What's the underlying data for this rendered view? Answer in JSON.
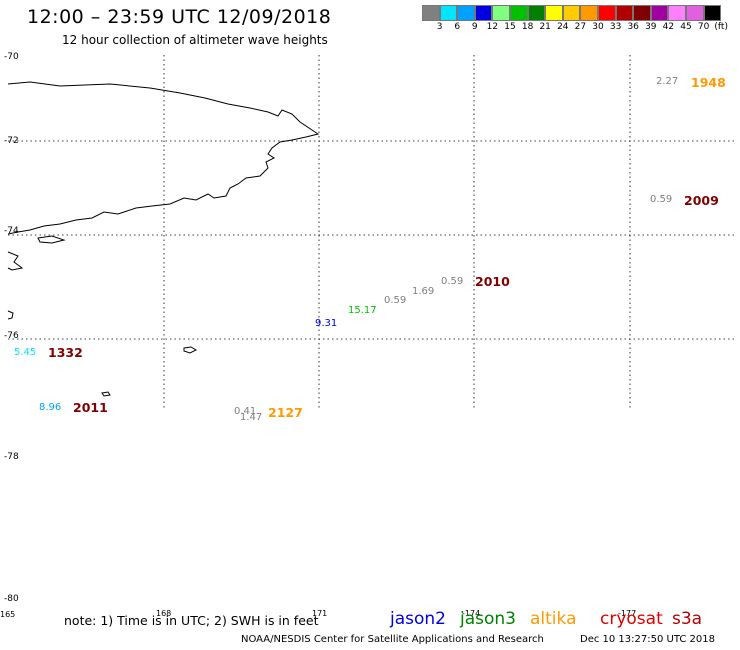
{
  "header": {
    "title": "12:00 – 23:59 UTC 12/09/2018",
    "subtitle": "12 hour collection of altimeter wave heights"
  },
  "color_scale": {
    "colors": [
      "#808080",
      "#00e5ff",
      "#00a0ff",
      "#0000e0",
      "#80ff80",
      "#00c000",
      "#008000",
      "#ffff00",
      "#ffcc00",
      "#ff9900",
      "#ff0000",
      "#b00000",
      "#800000",
      "#a000a0",
      "#ff80ff",
      "#e060e0",
      "#000000"
    ],
    "labels": [
      "3",
      "6",
      "9",
      "12",
      "15",
      "18",
      "21",
      "24",
      "27",
      "30",
      "33",
      "36",
      "39",
      "42",
      "45",
      "70",
      "(ft)"
    ]
  },
  "lat_labels": [
    "-70",
    "-72",
    "-74",
    "-76",
    "-78",
    "-80"
  ],
  "lon_labels": [
    "165",
    "168",
    "171",
    "-174",
    "-177"
  ],
  "observations": [
    {
      "swh": "2.27",
      "swh_color": "#808080",
      "time": "1948",
      "time_color": "#ff9900"
    },
    {
      "swh": "0.59",
      "swh_color": "#808080",
      "time": "2009",
      "time_color": "#800000"
    },
    {
      "swh": "0.59",
      "swh_color": "#808080",
      "time": "2010",
      "time_color": "#800000"
    },
    {
      "swh": "1.69",
      "swh_color": "#808080"
    },
    {
      "swh": "0.59",
      "swh_color": "#808080"
    },
    {
      "swh": "15.17",
      "swh_color": "#00c000"
    },
    {
      "swh": "9.31",
      "swh_color": "#0000e0"
    },
    {
      "swh": "5.45",
      "swh_color": "#00e5ff",
      "time": "1332",
      "time_color": "#800000"
    },
    {
      "swh": "8.96",
      "swh_color": "#00a0ff",
      "time": "2011",
      "time_color": "#800000"
    },
    {
      "swh": "0.41",
      "swh_color": "#808080",
      "time": "2127",
      "time_color": "#ff9900"
    },
    {
      "swh": "1.47",
      "swh_color": "#808080"
    }
  ],
  "footer": {
    "note": "note: 1) Time is in UTC; 2) SWH is in feet",
    "satellites": [
      {
        "name": "jason2",
        "color": "#0000e0"
      },
      {
        "name": "jason3",
        "color": "#008000"
      },
      {
        "name": "altika",
        "color": "#ff9900"
      },
      {
        "name": "cryosat",
        "color": "#e00000"
      },
      {
        "name": "s3a",
        "color": "#b00000"
      }
    ],
    "credit": "NOAA/NESDIS Center for Satellite Applications and Research",
    "timestamp": "Dec 10 13:27:50 UTC 2018"
  }
}
